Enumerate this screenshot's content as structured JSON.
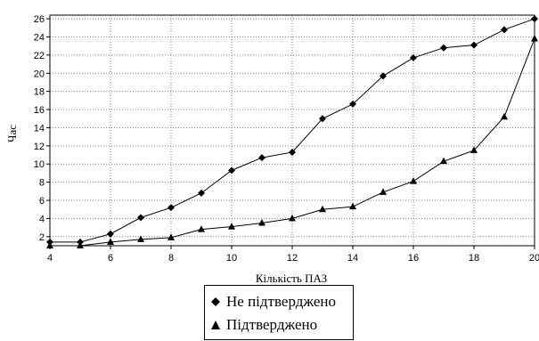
{
  "chart_data": {
    "type": "line",
    "xlabel": "Кількість ПАЗ",
    "ylabel": "Час",
    "xlim": [
      4,
      20
    ],
    "ylim": [
      1,
      26.4
    ],
    "xticks": [
      4,
      6,
      8,
      10,
      12,
      14,
      16,
      18,
      20
    ],
    "yticks": [
      2,
      4,
      6,
      8,
      10,
      12,
      14,
      16,
      18,
      20,
      22,
      24,
      26
    ],
    "grid": true,
    "legend_position": "bottom-center",
    "x": [
      4,
      5,
      6,
      7,
      8,
      9,
      10,
      11,
      12,
      13,
      14,
      15,
      16,
      17,
      18,
      19,
      20
    ],
    "series": [
      {
        "name": "Не підтверджено",
        "marker": "diamond",
        "values": [
          1.4,
          1.4,
          2.3,
          4.1,
          5.2,
          6.8,
          9.3,
          10.7,
          11.3,
          15.0,
          16.6,
          19.7,
          21.7,
          22.8,
          23.1,
          24.8,
          26.0
        ]
      },
      {
        "name": "Підтверджено",
        "marker": "triangle",
        "values": [
          1.0,
          1.0,
          1.4,
          1.7,
          1.9,
          2.8,
          3.1,
          3.5,
          4.0,
          5.0,
          5.3,
          6.9,
          8.1,
          10.3,
          11.5,
          15.2,
          23.8
        ]
      }
    ],
    "colors": {
      "line": "#000000",
      "grid": "#808080",
      "background": "#ffffff"
    }
  }
}
